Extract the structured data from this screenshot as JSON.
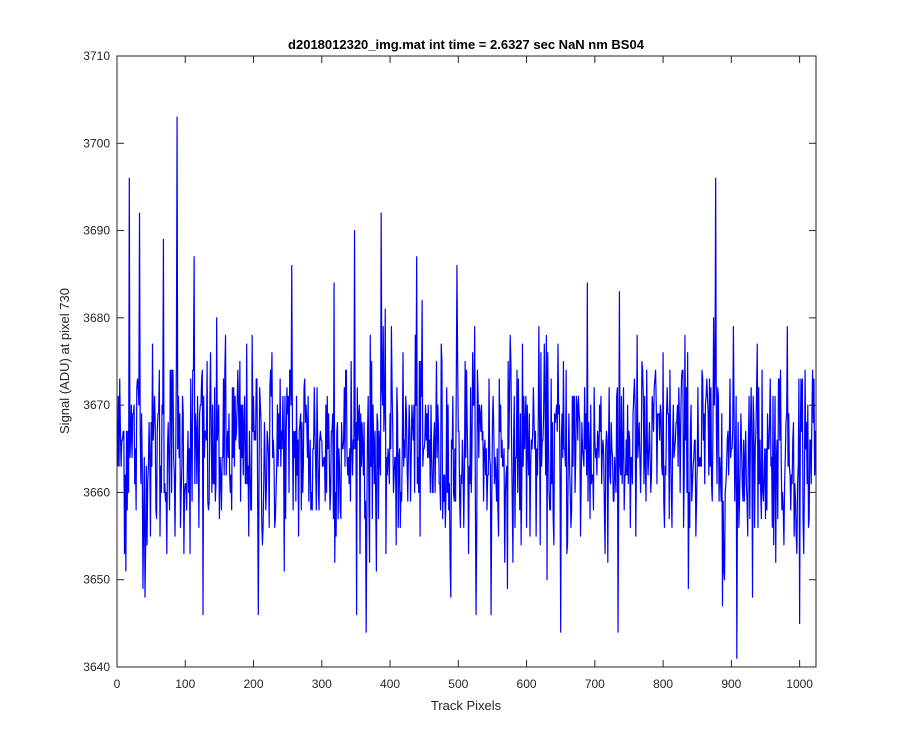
{
  "chart_data": {
    "type": "line",
    "title": "d2018012320_img.mat int time = 2.6327 sec  NaN nm BS04",
    "xlabel": "Track Pixels",
    "ylabel": "Signal (ADU) at pixel 730",
    "xlim": [
      0,
      1024
    ],
    "ylim": [
      3640,
      3710
    ],
    "xticks": [
      0,
      100,
      200,
      300,
      400,
      500,
      600,
      700,
      800,
      900,
      1000
    ],
    "yticks": [
      3640,
      3650,
      3660,
      3670,
      3680,
      3690,
      3700,
      3710
    ],
    "grid": false,
    "series": [
      {
        "color": "#0000ff",
        "n_points": 1024,
        "baseline": 3665,
        "noise_std": 6,
        "y_min": 3641,
        "y_max": 3703,
        "notable_points": [
          {
            "x": 13,
            "y": 3651
          },
          {
            "x": 18,
            "y": 3696
          },
          {
            "x": 33,
            "y": 3692
          },
          {
            "x": 41,
            "y": 3648
          },
          {
            "x": 68,
            "y": 3689
          },
          {
            "x": 88,
            "y": 3703
          },
          {
            "x": 113,
            "y": 3687
          },
          {
            "x": 126,
            "y": 3646
          },
          {
            "x": 207,
            "y": 3646
          },
          {
            "x": 256,
            "y": 3686
          },
          {
            "x": 318,
            "y": 3684
          },
          {
            "x": 348,
            "y": 3690
          },
          {
            "x": 365,
            "y": 3644
          },
          {
            "x": 387,
            "y": 3692
          },
          {
            "x": 439,
            "y": 3687
          },
          {
            "x": 498,
            "y": 3686
          },
          {
            "x": 548,
            "y": 3646
          },
          {
            "x": 650,
            "y": 3644
          },
          {
            "x": 689,
            "y": 3684
          },
          {
            "x": 734,
            "y": 3644
          },
          {
            "x": 877,
            "y": 3696
          },
          {
            "x": 887,
            "y": 3647
          },
          {
            "x": 908,
            "y": 3641
          },
          {
            "x": 1000,
            "y": 3645
          }
        ]
      }
    ]
  }
}
